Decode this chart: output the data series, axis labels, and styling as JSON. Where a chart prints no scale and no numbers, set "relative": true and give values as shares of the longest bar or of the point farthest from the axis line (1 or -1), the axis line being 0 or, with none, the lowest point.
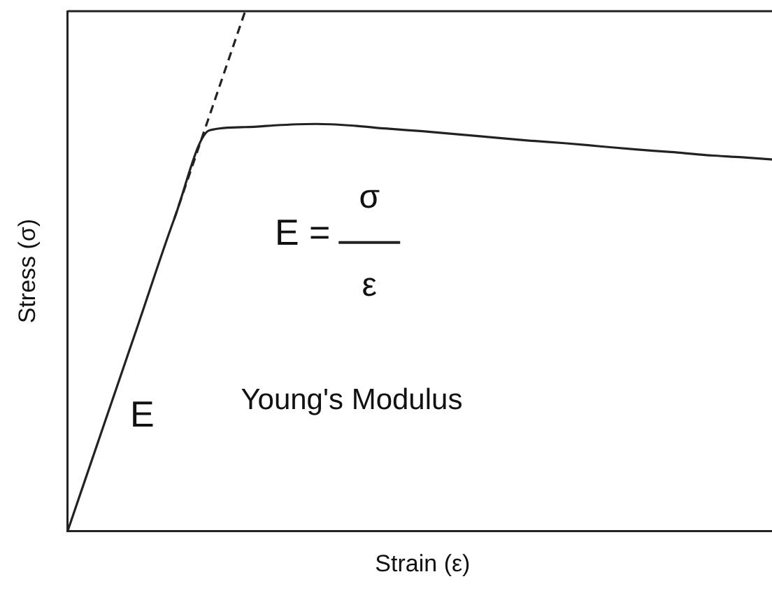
{
  "chart_data": {
    "type": "line",
    "relative": true,
    "xlabel": "Strain (ε)",
    "ylabel": "Stress (σ)",
    "categories": [
      null,
      null,
      null,
      null,
      null,
      null,
      null,
      null,
      null,
      null,
      null,
      null,
      null,
      null,
      null,
      null,
      null,
      null,
      null,
      null,
      null
    ],
    "series": [
      {
        "color": "#222222",
        "line_style": "solid",
        "values": [
          0,
          0.2,
          0.4,
          0.6,
          0.771,
          0.777,
          0.781,
          0.783,
          0.78,
          0.774,
          0.769,
          0.763,
          0.757,
          0.751,
          0.746,
          0.74,
          0.734,
          0.729,
          0.723,
          0.719,
          0.714
        ]
      },
      {
        "color": "#222222",
        "line_style": "dashed",
        "values": [
          null,
          null,
          null,
          0.6,
          0.8,
          1,
          null,
          null,
          null,
          null,
          null,
          null,
          null,
          null,
          null,
          null,
          null,
          null,
          null,
          null,
          null
        ]
      }
    ],
    "annotations": [
      "E",
      "E =",
      "σ",
      "ε",
      "Young's Modulus"
    ],
    "grid": false,
    "legend": false,
    "marker": "none"
  }
}
